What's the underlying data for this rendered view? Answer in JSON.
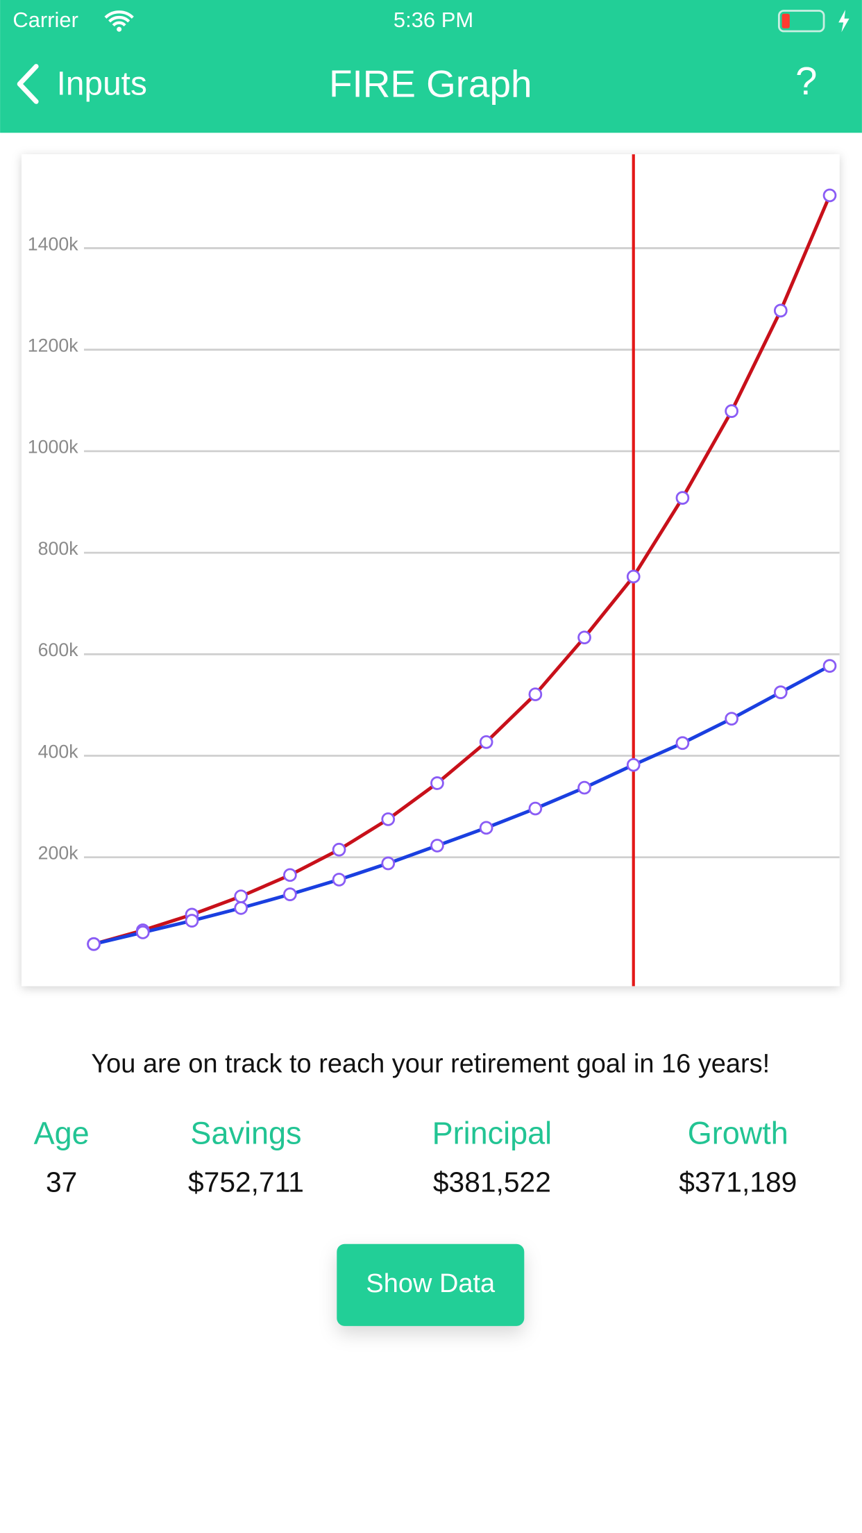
{
  "status_bar": {
    "carrier": "Carrier",
    "time": "5:36 PM"
  },
  "nav": {
    "back": "Inputs",
    "title": "FIRE Graph",
    "help": "?"
  },
  "chart_data": {
    "type": "line",
    "categories": [
      null,
      null,
      null,
      null,
      null,
      null,
      null,
      null,
      null,
      null,
      null,
      null,
      null,
      null,
      null,
      null
    ],
    "series": [
      {
        "color": "#c8101a",
        "values": [
          29000,
          56000,
          87000,
          123000,
          165000,
          215000,
          275000,
          346000,
          427000,
          521000,
          633000,
          753000,
          908000,
          1079000,
          1277000,
          1504000
        ]
      },
      {
        "color": "#1a3fe0",
        "values": [
          29000,
          52000,
          75000,
          100000,
          127000,
          156000,
          188000,
          223000,
          258000,
          296000,
          337000,
          382000,
          425000,
          473000,
          525000,
          577000
        ]
      }
    ],
    "marker_color": "#8a5cf5",
    "highlight_index": 11,
    "highlight_color": "#e31818",
    "ylim": [
      -54000,
      1585000
    ],
    "yticks": [
      {
        "value": 200000,
        "label": "200k"
      },
      {
        "value": 400000,
        "label": "400k"
      },
      {
        "value": 600000,
        "label": "600k"
      },
      {
        "value": 800000,
        "label": "800k"
      },
      {
        "value": 1000000,
        "label": "1000k"
      },
      {
        "value": 1200000,
        "label": "1200k"
      },
      {
        "value": 1400000,
        "label": "1400k"
      }
    ],
    "grid": true
  },
  "message": "You are on track to reach your retirement goal in 16 years!",
  "stats": [
    {
      "label": "Age",
      "value": "37"
    },
    {
      "label": "Savings",
      "value": "$752,711"
    },
    {
      "label": "Principal",
      "value": "$381,522"
    },
    {
      "label": "Growth",
      "value": "$371,189"
    }
  ],
  "button": "Show Data"
}
